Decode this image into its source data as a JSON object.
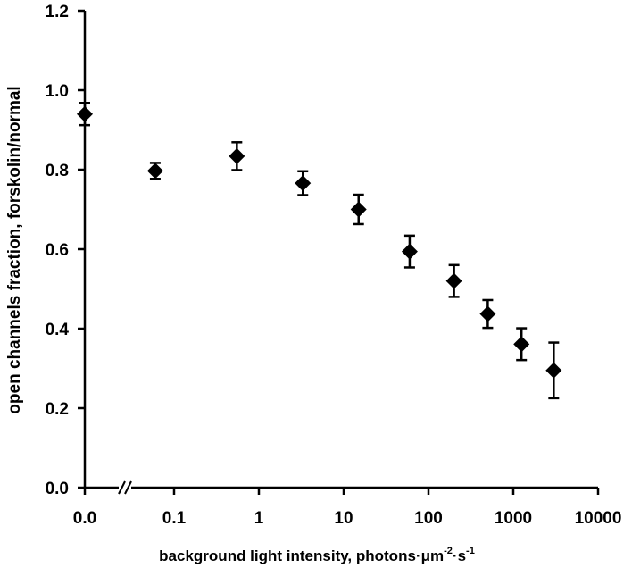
{
  "chart_data": {
    "type": "scatter",
    "title": "",
    "xlabel": "background light intensity, photons",
    "xlabel_unit": {
      "sep1": "·",
      "um": "μm",
      "exp1": "-2",
      "sep2": "·",
      "s": "s",
      "exp2": "-1"
    },
    "ylabel": "open channels fraction, forskolin/normal",
    "x_scale": "log",
    "x_tick_labels": [
      "0.0",
      "0.1",
      "1",
      "10",
      "100",
      "1000",
      "10000"
    ],
    "x_tick_values": [
      0.01,
      0.1,
      1,
      10,
      100,
      1000,
      10000
    ],
    "x_axis_break": "//",
    "y_tick_labels": [
      "0.0",
      "0.2",
      "0.4",
      "0.6",
      "0.8",
      "1.0",
      "1.2"
    ],
    "ylim": [
      0,
      1.2
    ],
    "grid": false,
    "legend": null,
    "marker": "diamond",
    "color": "#000000",
    "points": [
      {
        "x": 0,
        "y": 0.94,
        "err": 0.028
      },
      {
        "x": 0.06,
        "y": 0.797,
        "err": 0.02
      },
      {
        "x": 0.55,
        "y": 0.834,
        "err": 0.035
      },
      {
        "x": 3.3,
        "y": 0.766,
        "err": 0.03
      },
      {
        "x": 15,
        "y": 0.7,
        "err": 0.037
      },
      {
        "x": 60,
        "y": 0.594,
        "err": 0.04
      },
      {
        "x": 200,
        "y": 0.52,
        "err": 0.04
      },
      {
        "x": 500,
        "y": 0.437,
        "err": 0.035
      },
      {
        "x": 1250,
        "y": 0.361,
        "err": 0.04
      },
      {
        "x": 3000,
        "y": 0.295,
        "err": 0.07
      }
    ]
  }
}
